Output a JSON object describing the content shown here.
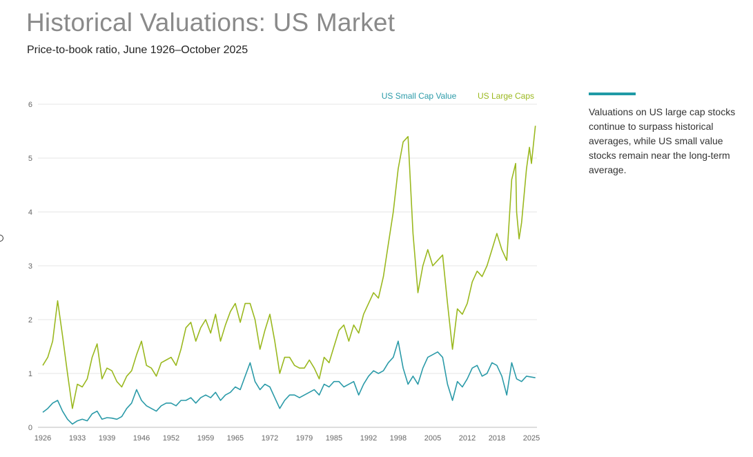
{
  "header": {
    "title": "Historical Valuations: US Market",
    "subtitle": "Price-to-book ratio, June 1926–October 2025"
  },
  "note": {
    "text": "Valuations on US large cap stocks continue to surpass historical averages, while US small value stocks remain near the long-term average.",
    "accent_color": "#1f9aa6"
  },
  "chart_data": {
    "type": "line",
    "title": "",
    "xlabel": "",
    "ylabel": "",
    "xlim": [
      1926,
      2025.8
    ],
    "ylim": [
      0,
      6
    ],
    "grid": true,
    "legend_placement": "top-right",
    "x_ticks": [
      "1926",
      "1933",
      "1939",
      "1946",
      "1952",
      "1959",
      "1965",
      "1972",
      "1979",
      "1985",
      "1992",
      "1998",
      "2005",
      "2012",
      "2018",
      "2025"
    ],
    "y_ticks": [
      "0",
      "1",
      "2",
      "3",
      "4",
      "5",
      "6"
    ],
    "series": [
      {
        "name": "US Small Cap Value",
        "color": "#2a9aa8",
        "x": [
          1926,
          1927,
          1928,
          1929,
          1930,
          1931,
          1932,
          1933,
          1934,
          1935,
          1936,
          1937,
          1938,
          1939,
          1940,
          1941,
          1942,
          1943,
          1944,
          1945,
          1946,
          1947,
          1948,
          1949,
          1950,
          1951,
          1952,
          1953,
          1954,
          1955,
          1956,
          1957,
          1958,
          1959,
          1960,
          1961,
          1962,
          1963,
          1964,
          1965,
          1966,
          1967,
          1968,
          1969,
          1970,
          1971,
          1972,
          1973,
          1974,
          1975,
          1976,
          1977,
          1978,
          1979,
          1980,
          1981,
          1982,
          1983,
          1984,
          1985,
          1986,
          1987,
          1988,
          1989,
          1990,
          1991,
          1992,
          1993,
          1994,
          1995,
          1996,
          1997,
          1998,
          1999,
          2000,
          2001,
          2002,
          2003,
          2004,
          2005,
          2006,
          2007,
          2008,
          2009,
          2010,
          2011,
          2012,
          2013,
          2014,
          2015,
          2016,
          2017,
          2018,
          2019,
          2020,
          2021,
          2022,
          2023,
          2024,
          2025.8
        ],
        "values": [
          0.28,
          0.35,
          0.45,
          0.5,
          0.3,
          0.15,
          0.06,
          0.12,
          0.15,
          0.12,
          0.25,
          0.3,
          0.15,
          0.18,
          0.17,
          0.15,
          0.2,
          0.35,
          0.45,
          0.7,
          0.5,
          0.4,
          0.35,
          0.3,
          0.4,
          0.45,
          0.45,
          0.4,
          0.5,
          0.5,
          0.55,
          0.45,
          0.55,
          0.6,
          0.55,
          0.65,
          0.5,
          0.6,
          0.65,
          0.75,
          0.7,
          0.95,
          1.2,
          0.85,
          0.7,
          0.8,
          0.75,
          0.55,
          0.35,
          0.5,
          0.6,
          0.6,
          0.55,
          0.6,
          0.65,
          0.7,
          0.6,
          0.8,
          0.75,
          0.85,
          0.85,
          0.75,
          0.8,
          0.85,
          0.6,
          0.8,
          0.95,
          1.05,
          1.0,
          1.05,
          1.2,
          1.3,
          1.6,
          1.1,
          0.8,
          0.95,
          0.8,
          1.1,
          1.3,
          1.35,
          1.4,
          1.3,
          0.8,
          0.5,
          0.85,
          0.75,
          0.9,
          1.1,
          1.15,
          0.95,
          1.0,
          1.2,
          1.15,
          0.95,
          0.6,
          1.2,
          0.9,
          0.85,
          0.95,
          0.92
        ]
      },
      {
        "name": "US Large Caps",
        "color": "#9ab81e",
        "x": [
          1926,
          1927,
          1928,
          1929,
          1930,
          1931,
          1932,
          1933,
          1934,
          1935,
          1936,
          1937,
          1938,
          1939,
          1940,
          1941,
          1942,
          1943,
          1944,
          1945,
          1946,
          1947,
          1948,
          1949,
          1950,
          1951,
          1952,
          1953,
          1954,
          1955,
          1956,
          1957,
          1958,
          1959,
          1960,
          1961,
          1962,
          1963,
          1964,
          1965,
          1966,
          1967,
          1968,
          1969,
          1970,
          1971,
          1972,
          1973,
          1974,
          1975,
          1976,
          1977,
          1978,
          1979,
          1980,
          1981,
          1982,
          1983,
          1984,
          1985,
          1986,
          1987,
          1988,
          1989,
          1990,
          1991,
          1992,
          1993,
          1994,
          1995,
          1996,
          1997,
          1998,
          1999,
          2000,
          2001,
          2002,
          2003,
          2004,
          2005,
          2006,
          2007,
          2008,
          2009,
          2010,
          2011,
          2012,
          2013,
          2014,
          2015,
          2016,
          2017,
          2018,
          2019,
          2020,
          2021,
          2021.8,
          2022,
          2022.5,
          2023,
          2024,
          2024.6,
          2025,
          2025.8
        ],
        "values": [
          1.15,
          1.3,
          1.6,
          2.35,
          1.7,
          1.0,
          0.35,
          0.8,
          0.75,
          0.9,
          1.3,
          1.55,
          0.9,
          1.1,
          1.05,
          0.85,
          0.75,
          0.95,
          1.05,
          1.35,
          1.6,
          1.15,
          1.1,
          0.95,
          1.2,
          1.25,
          1.3,
          1.15,
          1.45,
          1.85,
          1.95,
          1.6,
          1.85,
          2.0,
          1.75,
          2.1,
          1.6,
          1.9,
          2.15,
          2.3,
          1.95,
          2.3,
          2.3,
          2.0,
          1.45,
          1.8,
          2.1,
          1.6,
          1.0,
          1.3,
          1.3,
          1.15,
          1.1,
          1.1,
          1.25,
          1.1,
          0.9,
          1.3,
          1.2,
          1.5,
          1.8,
          1.9,
          1.6,
          1.9,
          1.75,
          2.1,
          2.3,
          2.5,
          2.4,
          2.8,
          3.4,
          4.0,
          4.8,
          5.3,
          5.4,
          3.6,
          2.5,
          3.0,
          3.3,
          3.0,
          3.1,
          3.2,
          2.3,
          1.45,
          2.2,
          2.1,
          2.3,
          2.7,
          2.9,
          2.8,
          3.0,
          3.3,
          3.6,
          3.3,
          3.1,
          4.6,
          4.9,
          4.0,
          3.5,
          3.8,
          4.8,
          5.2,
          4.9,
          5.6
        ]
      }
    ]
  }
}
